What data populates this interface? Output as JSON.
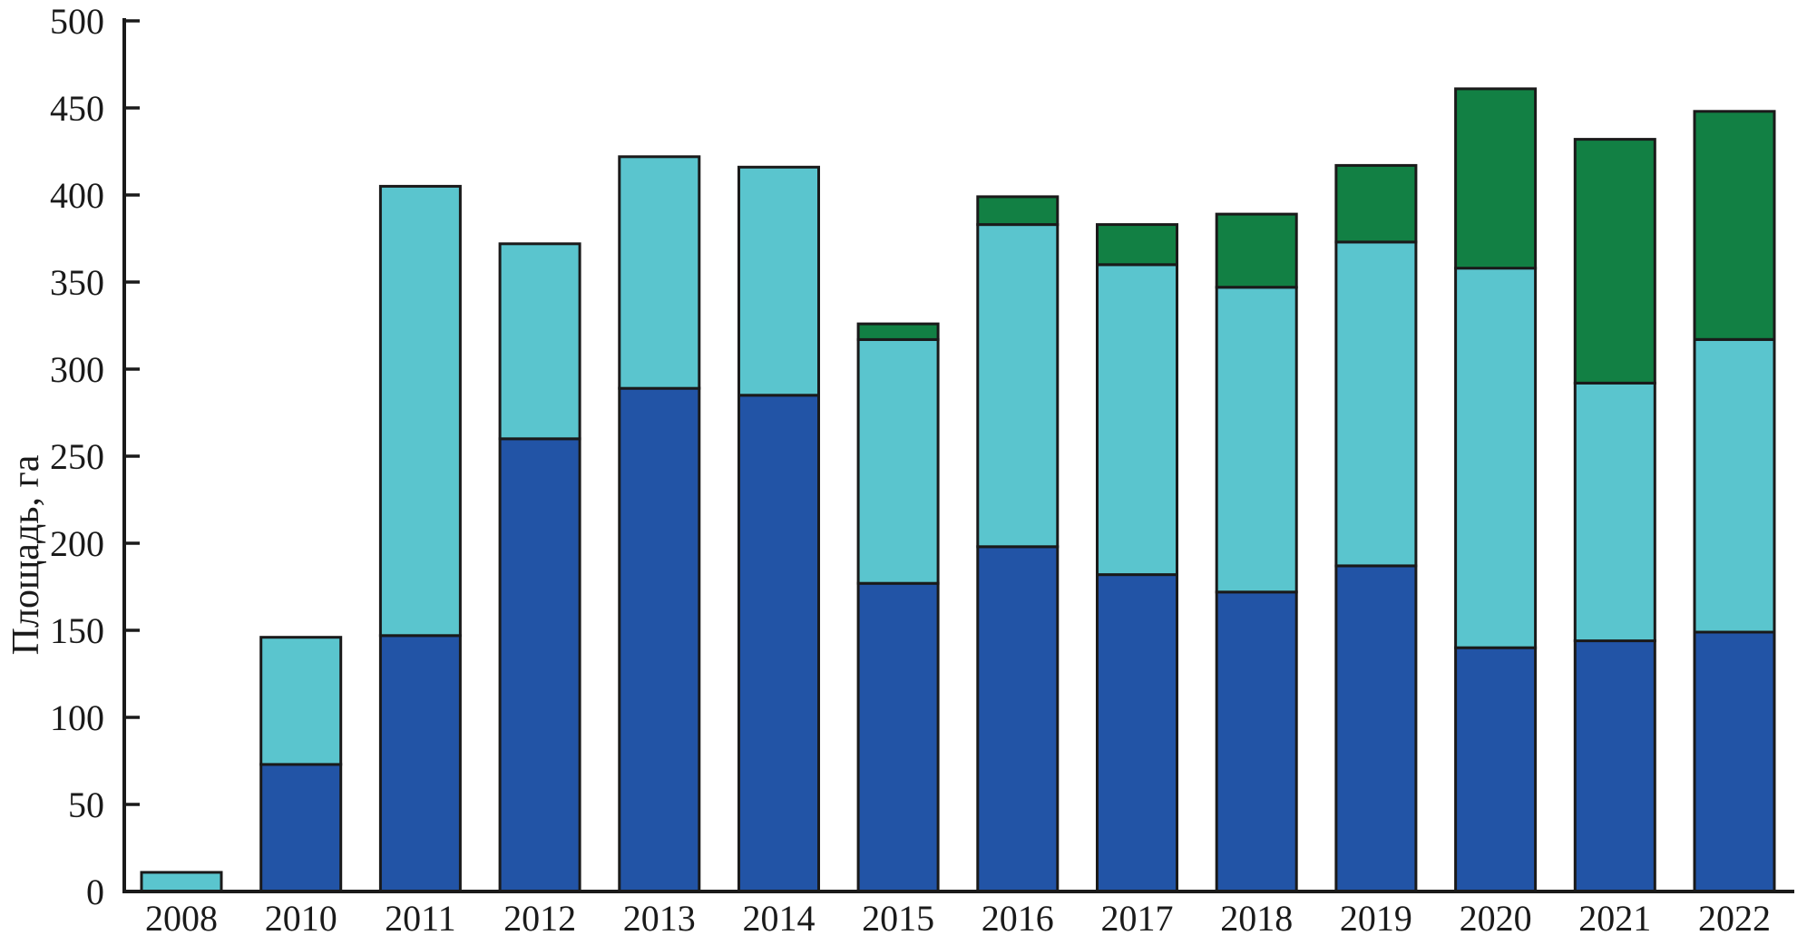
{
  "chart_data": {
    "type": "bar",
    "stacked": true,
    "title": "",
    "xlabel": "",
    "ylabel": "Площадь, га",
    "ylim": [
      0,
      500
    ],
    "ytick_step": 50,
    "grid": false,
    "legend": "none",
    "background_color": "#ffffff",
    "axis_color": "#1a1a1a",
    "bar_outline_color": "#1a1a1a",
    "categories": [
      "2008",
      "2010",
      "2011",
      "2012",
      "2013",
      "2014",
      "2015",
      "2016",
      "2017",
      "2018",
      "2019",
      "2020",
      "2021",
      "2022"
    ],
    "y_ticks": [
      "0",
      "50",
      "100",
      "150",
      "200",
      "250",
      "300",
      "350",
      "400",
      "450",
      "500"
    ],
    "series": [
      {
        "name": "bottom-segment-dark-blue",
        "color": "#2254a6",
        "values": [
          0,
          73,
          147,
          260,
          289,
          285,
          177,
          198,
          182,
          172,
          187,
          140,
          144,
          149
        ]
      },
      {
        "name": "middle-segment-cyan",
        "color": "#5ac5ce",
        "values": [
          11,
          73,
          258,
          112,
          133,
          131,
          140,
          185,
          178,
          175,
          186,
          218,
          148,
          168
        ]
      },
      {
        "name": "top-segment-green",
        "color": "#128044",
        "values": [
          0,
          0,
          0,
          0,
          0,
          0,
          9,
          16,
          23,
          42,
          44,
          103,
          140,
          131
        ]
      }
    ],
    "stack_totals": [
      11,
      146,
      405,
      372,
      422,
      416,
      326,
      399,
      383,
      389,
      417,
      461,
      432,
      448
    ]
  }
}
